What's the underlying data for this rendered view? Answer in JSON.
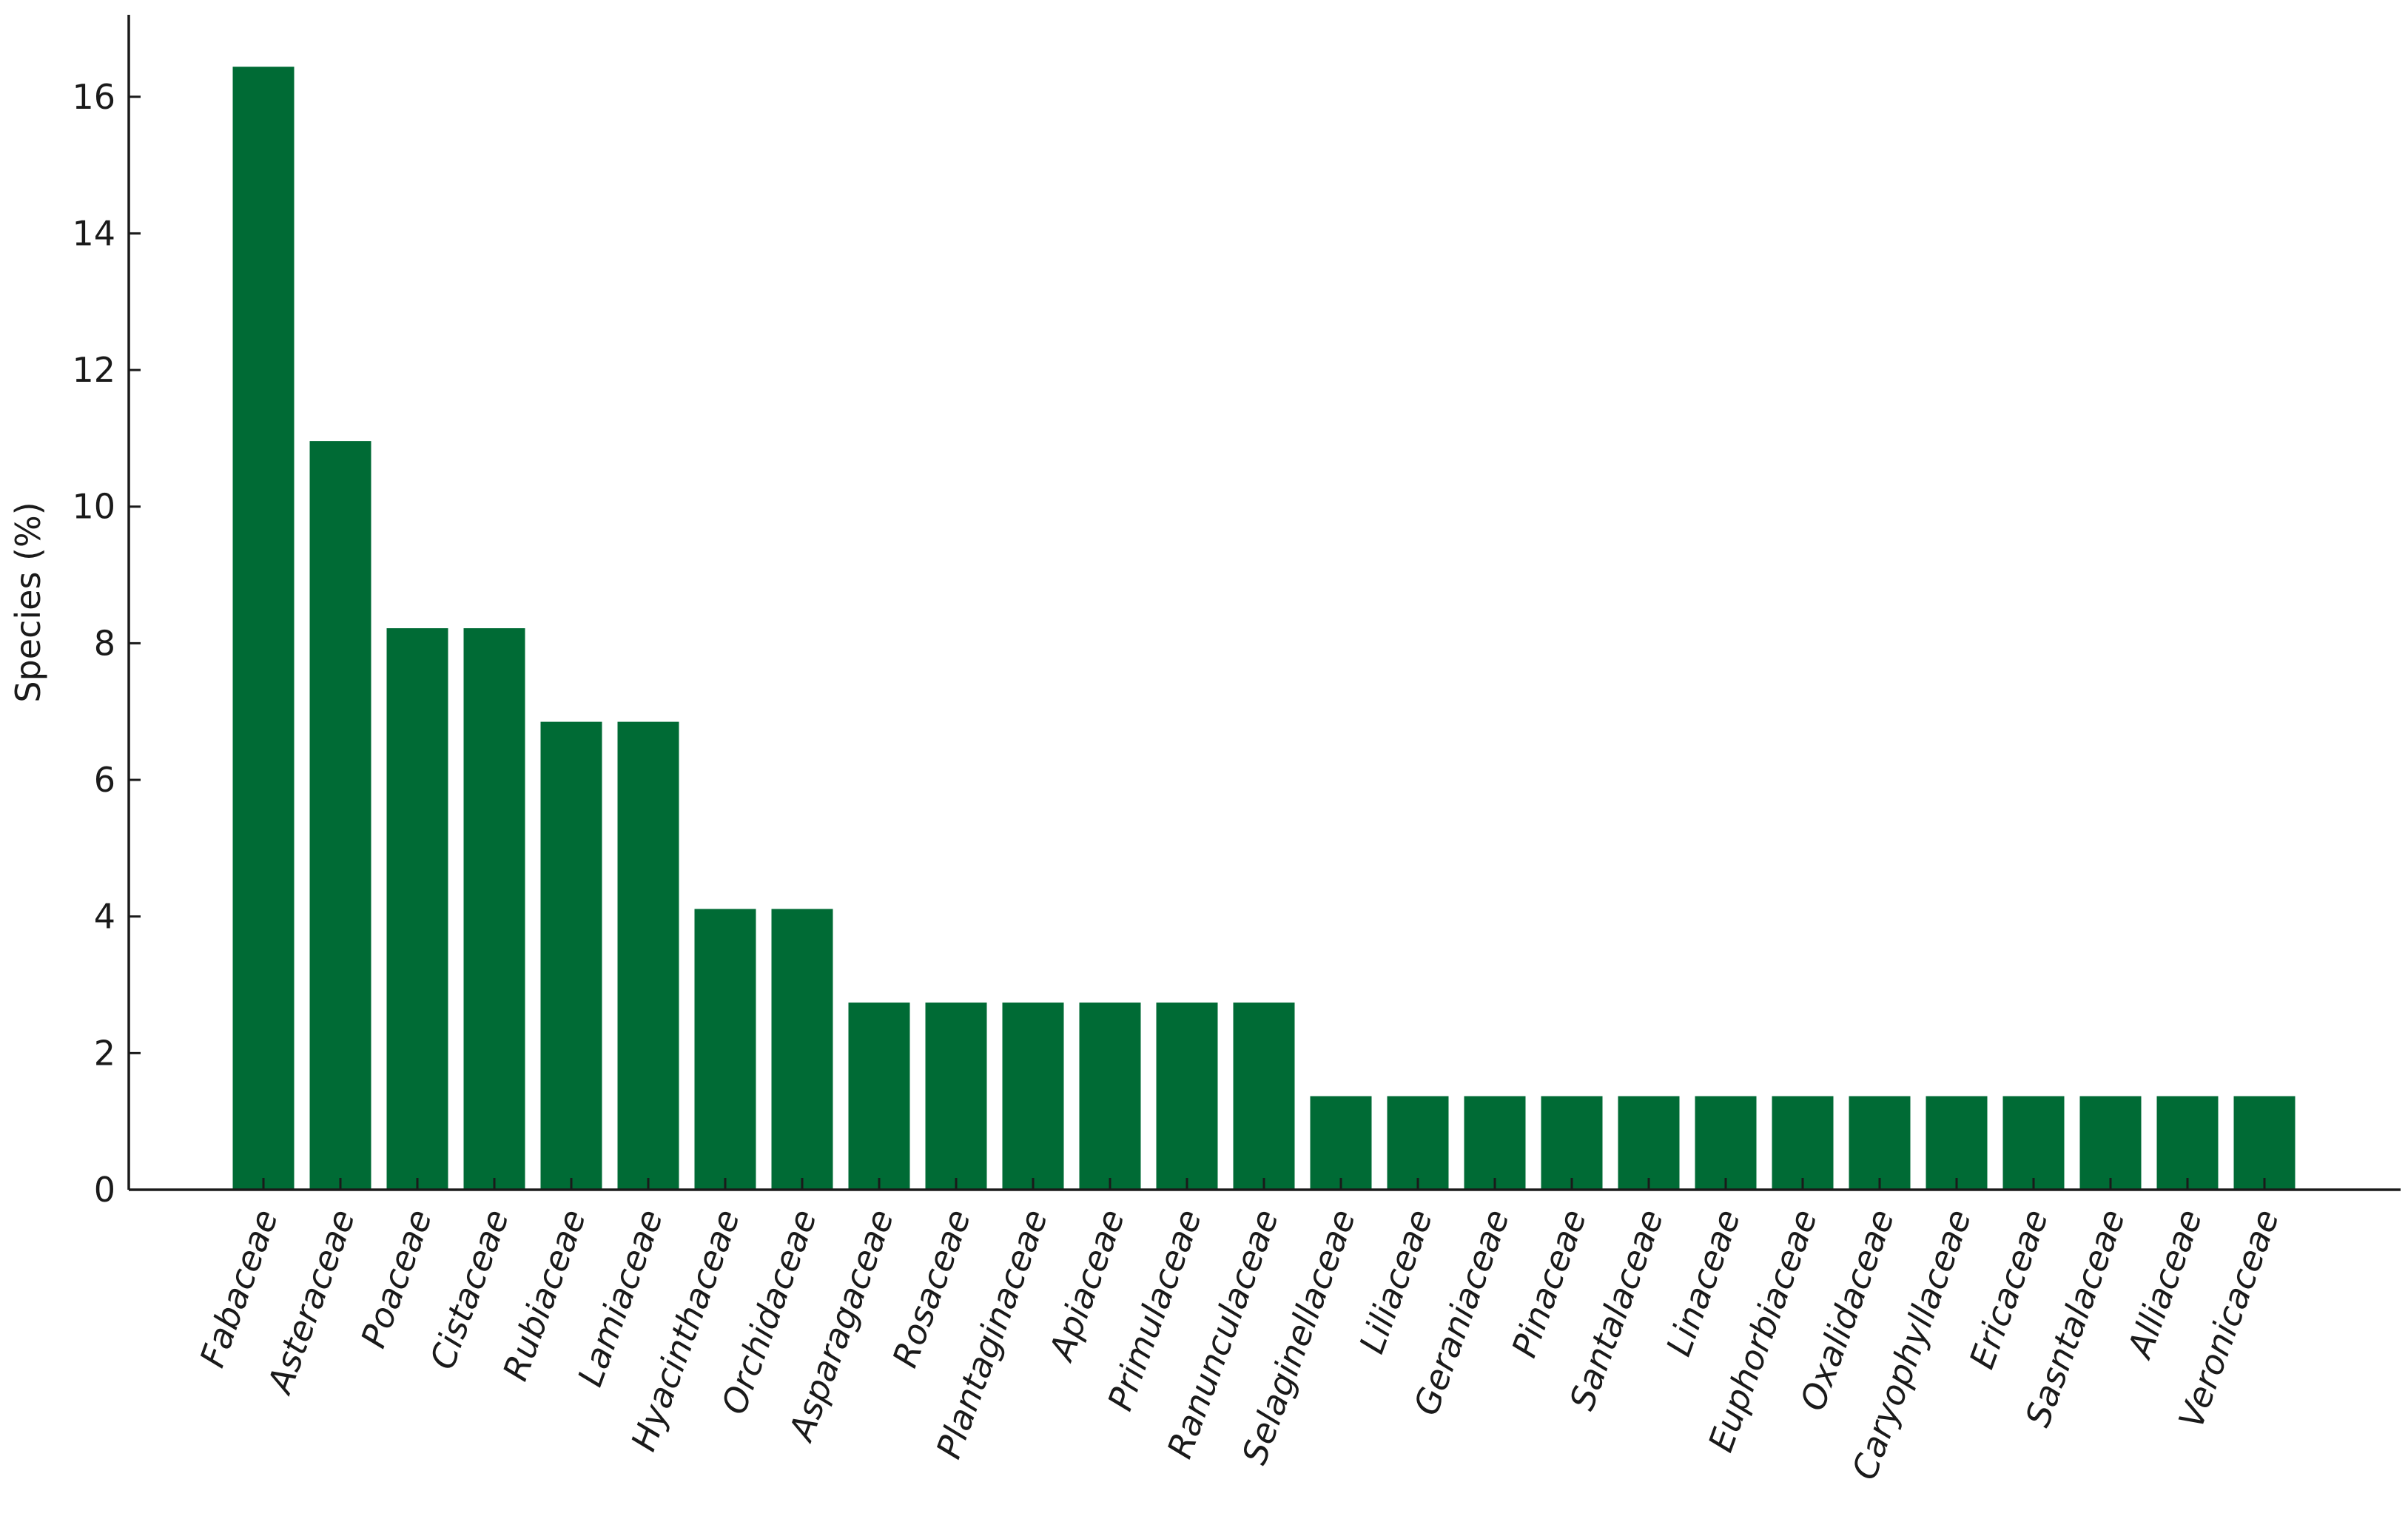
{
  "chart_data": {
    "type": "bar",
    "title": "",
    "xlabel": "",
    "ylabel": "Species (%)",
    "ylim": [
      0,
      17.2
    ],
    "yticks": [
      0,
      2,
      4,
      6,
      8,
      10,
      12,
      14,
      16
    ],
    "grid": false,
    "legend": "none",
    "bar_color": "#006b35",
    "categories": [
      "Fabaceae",
      "Asteraceae",
      "Poaceae",
      "Cistaceae",
      "Rubiaceae",
      "Lamiaceae",
      "Hyacinthaceae",
      "Orchidaceae",
      "Asparagaceae",
      "Rosaceae",
      "Plantaginaceae",
      "Apiaceae",
      "Primulaceae",
      "Ranunculaceae",
      "Selaginellaceae",
      "Liliaceae",
      "Geraniaceae",
      "Pinaceae",
      "Santalaceae",
      "Linaceae",
      "Euphorbiaceae",
      "Oxalidaceae",
      "Caryophyllaceae",
      "Ericaceae",
      "Sasntalaceae",
      "Alliaceae",
      "Veronicaceae"
    ],
    "values": [
      16.44,
      10.96,
      8.22,
      8.22,
      6.85,
      6.85,
      4.11,
      4.11,
      2.74,
      2.74,
      2.74,
      2.74,
      2.74,
      2.74,
      1.37,
      1.37,
      1.37,
      1.37,
      1.37,
      1.37,
      1.37,
      1.37,
      1.37,
      1.37,
      1.37,
      1.37,
      1.37
    ]
  }
}
